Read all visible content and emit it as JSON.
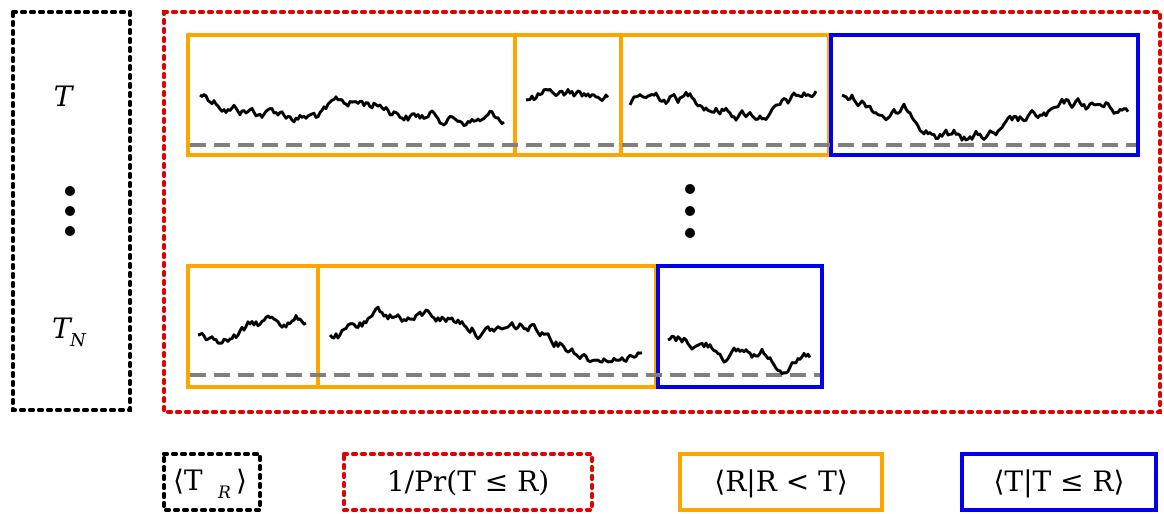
{
  "colors": {
    "ensemble_box": "#000000",
    "outer_box": "#e00000",
    "restart_box": "#ffa500",
    "completion_box": "#0000ee",
    "trace": "#000000",
    "threshold_line": "#808080"
  },
  "left_panel": {
    "label_top": "T",
    "label_bottom": "T",
    "label_bottom_subscript": "N",
    "ellipsis": "vertical-dots"
  },
  "rows": [
    {
      "name": "row-1",
      "segments": [
        {
          "kind": "restart",
          "color": "orange"
        },
        {
          "kind": "restart",
          "color": "orange"
        },
        {
          "kind": "restart",
          "color": "orange"
        },
        {
          "kind": "completion",
          "color": "blue"
        }
      ]
    },
    {
      "name": "row-N",
      "segments": [
        {
          "kind": "restart",
          "color": "orange"
        },
        {
          "kind": "restart",
          "color": "orange"
        },
        {
          "kind": "completion",
          "color": "blue"
        }
      ]
    }
  ],
  "legend": [
    {
      "name": "legend-mean-restart-time",
      "style": "black-dotted",
      "text": "⟨T",
      "sub": "R",
      "tail": "⟩"
    },
    {
      "name": "legend-inverse-probability",
      "style": "red-dotted",
      "text": "1/Pr(T ≤ R)"
    },
    {
      "name": "legend-conditional-R",
      "style": "orange-solid",
      "text": "⟨R|R < T⟩"
    },
    {
      "name": "legend-conditional-T",
      "style": "blue-solid",
      "text": "⟨T|T ≤ R⟩"
    }
  ]
}
